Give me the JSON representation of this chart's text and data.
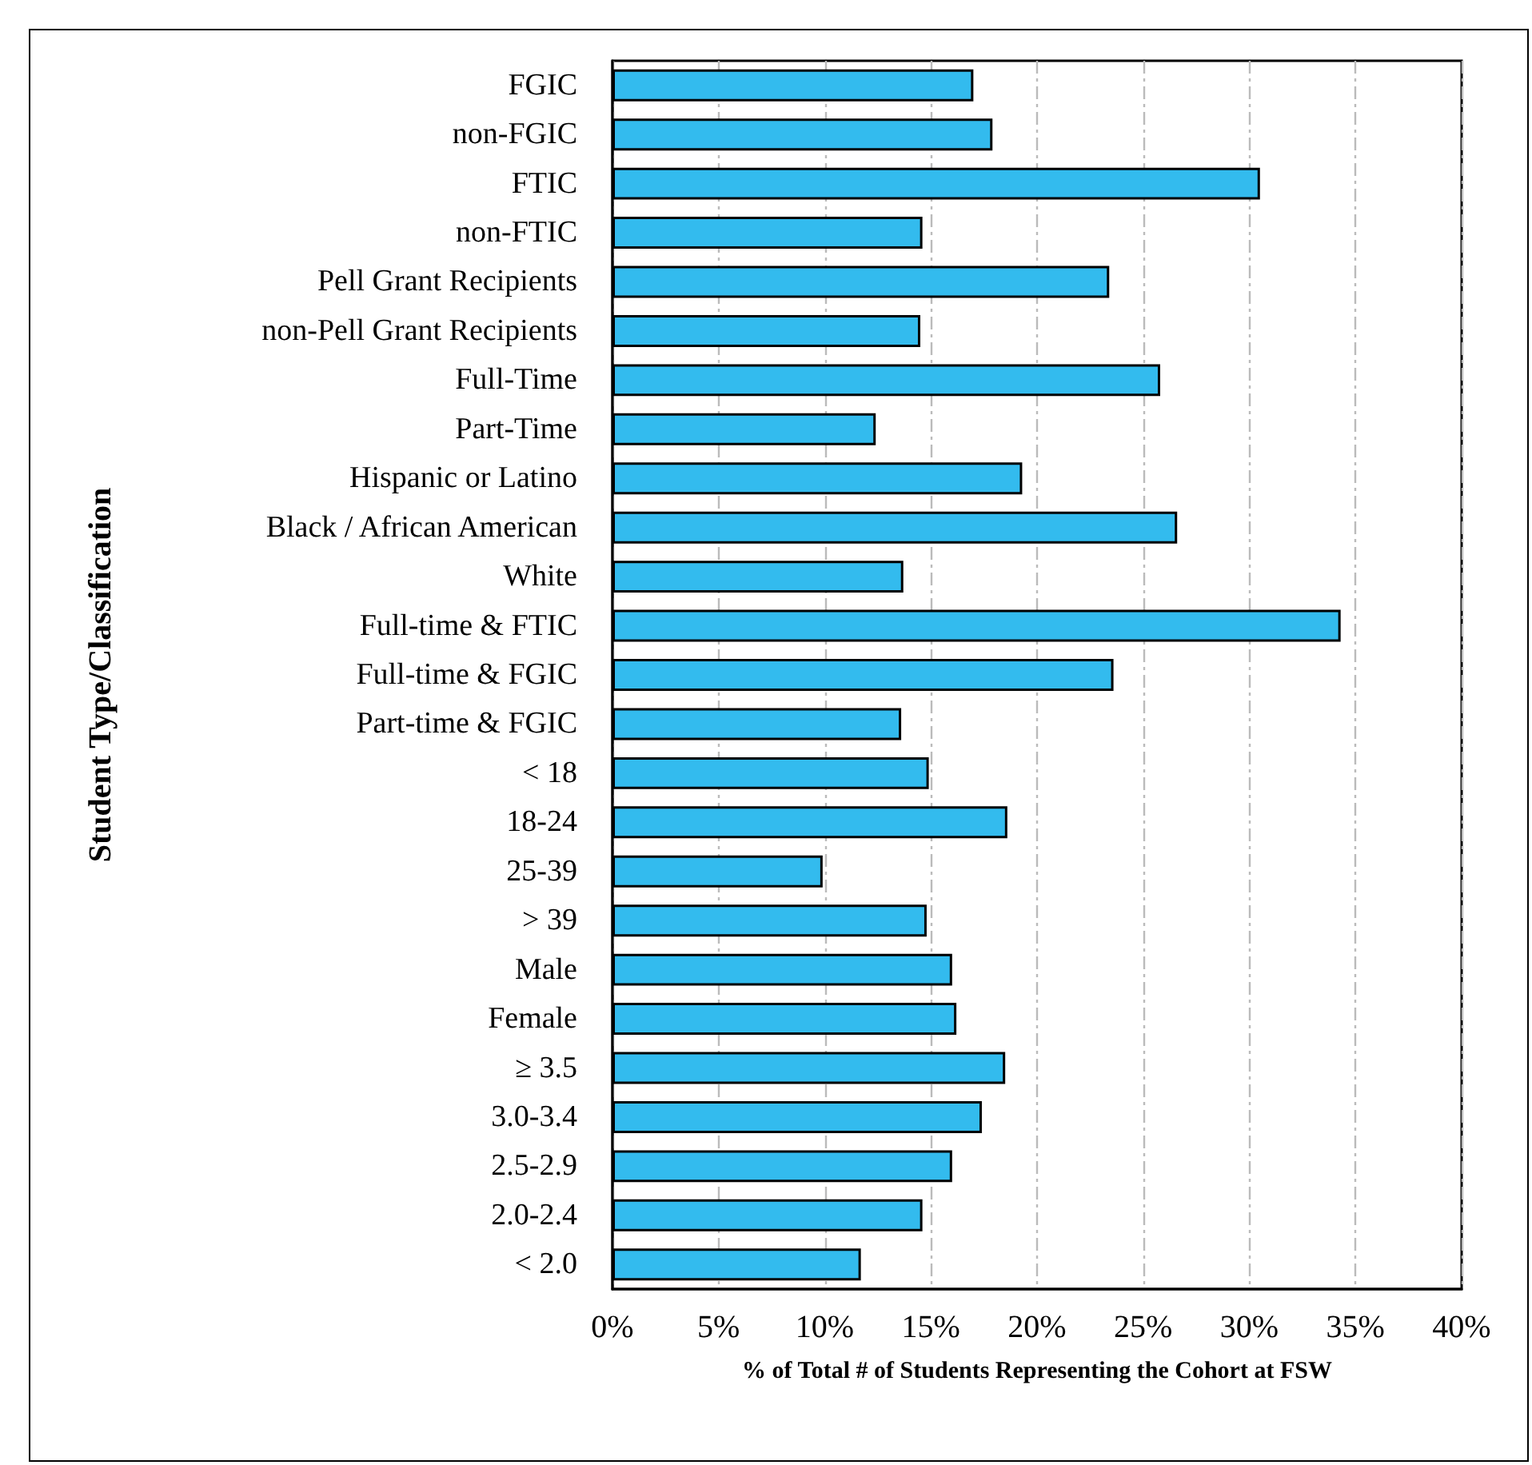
{
  "chart_data": {
    "type": "bar",
    "orientation": "horizontal",
    "xlabel": "% of Total # of Students Representing the Cohort at FSW",
    "ylabel": "Student Type/Classification",
    "categories": [
      "FGIC",
      "non-FGIC",
      "FTIC",
      "non-FTIC",
      "Pell Grant Recipients",
      "non-Pell Grant Recipients",
      "Full-Time",
      "Part-Time",
      "Hispanic or Latino",
      "Black / African American",
      "White",
      "Full-time & FTIC",
      "Full-time & FGIC",
      "Part-time & FGIC",
      "< 18",
      "18-24",
      "25-39",
      "> 39",
      "Male",
      "Female",
      "≥ 3.5",
      "3.0-3.4",
      "2.5-2.9",
      "2.0-2.4",
      "< 2.0"
    ],
    "values": [
      17.0,
      17.9,
      30.5,
      14.6,
      23.4,
      14.5,
      25.8,
      12.4,
      19.3,
      26.6,
      13.7,
      34.3,
      23.6,
      13.6,
      14.9,
      18.6,
      9.9,
      14.8,
      16.0,
      16.2,
      18.5,
      17.4,
      16.0,
      14.6,
      11.7
    ],
    "color": "#33bbee",
    "xlim": [
      0,
      40
    ],
    "xticks": [
      {
        "value": 0,
        "label": "0%"
      },
      {
        "value": 5,
        "label": "5%"
      },
      {
        "value": 10,
        "label": "10%"
      },
      {
        "value": 15,
        "label": "15%"
      },
      {
        "value": 20,
        "label": "20%"
      },
      {
        "value": 25,
        "label": "25%"
      },
      {
        "value": 30,
        "label": "30%"
      },
      {
        "value": 35,
        "label": "35%"
      },
      {
        "value": 40,
        "label": "40%"
      }
    ],
    "grid": "x"
  }
}
